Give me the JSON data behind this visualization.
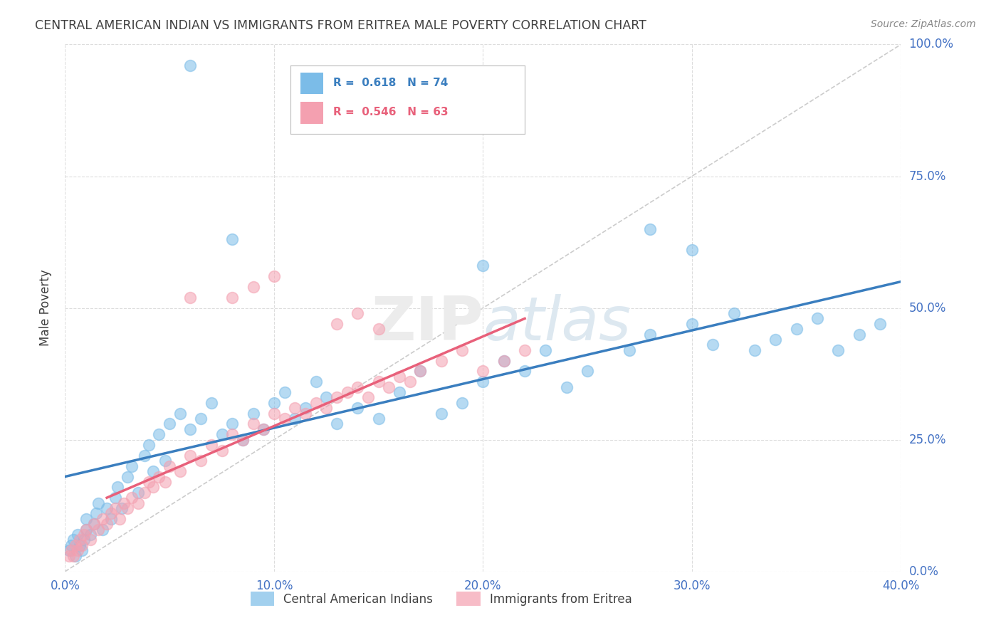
{
  "title": "CENTRAL AMERICAN INDIAN VS IMMIGRANTS FROM ERITREA MALE POVERTY CORRELATION CHART",
  "source": "Source: ZipAtlas.com",
  "xlabel_ticks": [
    "0.0%",
    "10.0%",
    "20.0%",
    "30.0%",
    "40.0%"
  ],
  "xlabel_tick_vals": [
    0.0,
    0.1,
    0.2,
    0.3,
    0.4
  ],
  "ylabel": "Male Poverty",
  "ylabel_ticks": [
    "0.0%",
    "25.0%",
    "50.0%",
    "75.0%",
    "100.0%"
  ],
  "ylabel_tick_vals": [
    0.0,
    0.25,
    0.5,
    0.75,
    1.0
  ],
  "xlim": [
    0.0,
    0.4
  ],
  "ylim": [
    0.0,
    1.0
  ],
  "blue_color": "#7bbce8",
  "pink_color": "#f4a0b0",
  "blue_line_color": "#3a7ebf",
  "pink_line_color": "#e8607a",
  "diagonal_color": "#cccccc",
  "blue_scatter_x": [
    0.002,
    0.003,
    0.004,
    0.005,
    0.006,
    0.007,
    0.008,
    0.009,
    0.01,
    0.01,
    0.012,
    0.014,
    0.015,
    0.016,
    0.018,
    0.02,
    0.022,
    0.024,
    0.025,
    0.027,
    0.03,
    0.032,
    0.035,
    0.038,
    0.04,
    0.042,
    0.045,
    0.048,
    0.05,
    0.055,
    0.06,
    0.065,
    0.07,
    0.075,
    0.08,
    0.085,
    0.09,
    0.095,
    0.1,
    0.105,
    0.11,
    0.115,
    0.12,
    0.125,
    0.13,
    0.14,
    0.15,
    0.16,
    0.17,
    0.18,
    0.19,
    0.2,
    0.21,
    0.22,
    0.23,
    0.24,
    0.25,
    0.27,
    0.28,
    0.3,
    0.31,
    0.32,
    0.33,
    0.34,
    0.35,
    0.36,
    0.37,
    0.38,
    0.39,
    0.3,
    0.28,
    0.2,
    0.08,
    0.06
  ],
  "blue_scatter_y": [
    0.04,
    0.05,
    0.06,
    0.03,
    0.07,
    0.05,
    0.04,
    0.06,
    0.08,
    0.1,
    0.07,
    0.09,
    0.11,
    0.13,
    0.08,
    0.12,
    0.1,
    0.14,
    0.16,
    0.12,
    0.18,
    0.2,
    0.15,
    0.22,
    0.24,
    0.19,
    0.26,
    0.21,
    0.28,
    0.3,
    0.27,
    0.29,
    0.32,
    0.26,
    0.28,
    0.25,
    0.3,
    0.27,
    0.32,
    0.34,
    0.29,
    0.31,
    0.36,
    0.33,
    0.28,
    0.31,
    0.29,
    0.34,
    0.38,
    0.3,
    0.32,
    0.36,
    0.4,
    0.38,
    0.42,
    0.35,
    0.38,
    0.42,
    0.45,
    0.47,
    0.43,
    0.49,
    0.42,
    0.44,
    0.46,
    0.48,
    0.42,
    0.45,
    0.47,
    0.61,
    0.65,
    0.58,
    0.63,
    0.96
  ],
  "pink_scatter_x": [
    0.002,
    0.003,
    0.004,
    0.005,
    0.006,
    0.007,
    0.008,
    0.009,
    0.01,
    0.012,
    0.014,
    0.016,
    0.018,
    0.02,
    0.022,
    0.024,
    0.026,
    0.028,
    0.03,
    0.032,
    0.035,
    0.038,
    0.04,
    0.042,
    0.045,
    0.048,
    0.05,
    0.055,
    0.06,
    0.065,
    0.07,
    0.075,
    0.08,
    0.085,
    0.09,
    0.095,
    0.1,
    0.105,
    0.11,
    0.115,
    0.12,
    0.125,
    0.13,
    0.135,
    0.14,
    0.145,
    0.15,
    0.155,
    0.16,
    0.165,
    0.17,
    0.18,
    0.19,
    0.2,
    0.21,
    0.22,
    0.13,
    0.14,
    0.15,
    0.08,
    0.09,
    0.1,
    0.06
  ],
  "pink_scatter_y": [
    0.03,
    0.04,
    0.03,
    0.05,
    0.04,
    0.06,
    0.05,
    0.07,
    0.08,
    0.06,
    0.09,
    0.08,
    0.1,
    0.09,
    0.11,
    0.12,
    0.1,
    0.13,
    0.12,
    0.14,
    0.13,
    0.15,
    0.17,
    0.16,
    0.18,
    0.17,
    0.2,
    0.19,
    0.22,
    0.21,
    0.24,
    0.23,
    0.26,
    0.25,
    0.28,
    0.27,
    0.3,
    0.29,
    0.31,
    0.3,
    0.32,
    0.31,
    0.33,
    0.34,
    0.35,
    0.33,
    0.36,
    0.35,
    0.37,
    0.36,
    0.38,
    0.4,
    0.42,
    0.38,
    0.4,
    0.42,
    0.47,
    0.49,
    0.46,
    0.52,
    0.54,
    0.56,
    0.52
  ],
  "blue_trend_x": [
    0.0,
    0.4
  ],
  "blue_trend_y": [
    0.18,
    0.55
  ],
  "pink_trend_x": [
    0.02,
    0.22
  ],
  "pink_trend_y": [
    0.14,
    0.48
  ],
  "background_color": "#ffffff",
  "grid_color": "#dddddd",
  "tick_color": "#4472c4",
  "title_color": "#404040",
  "source_color": "#888888"
}
